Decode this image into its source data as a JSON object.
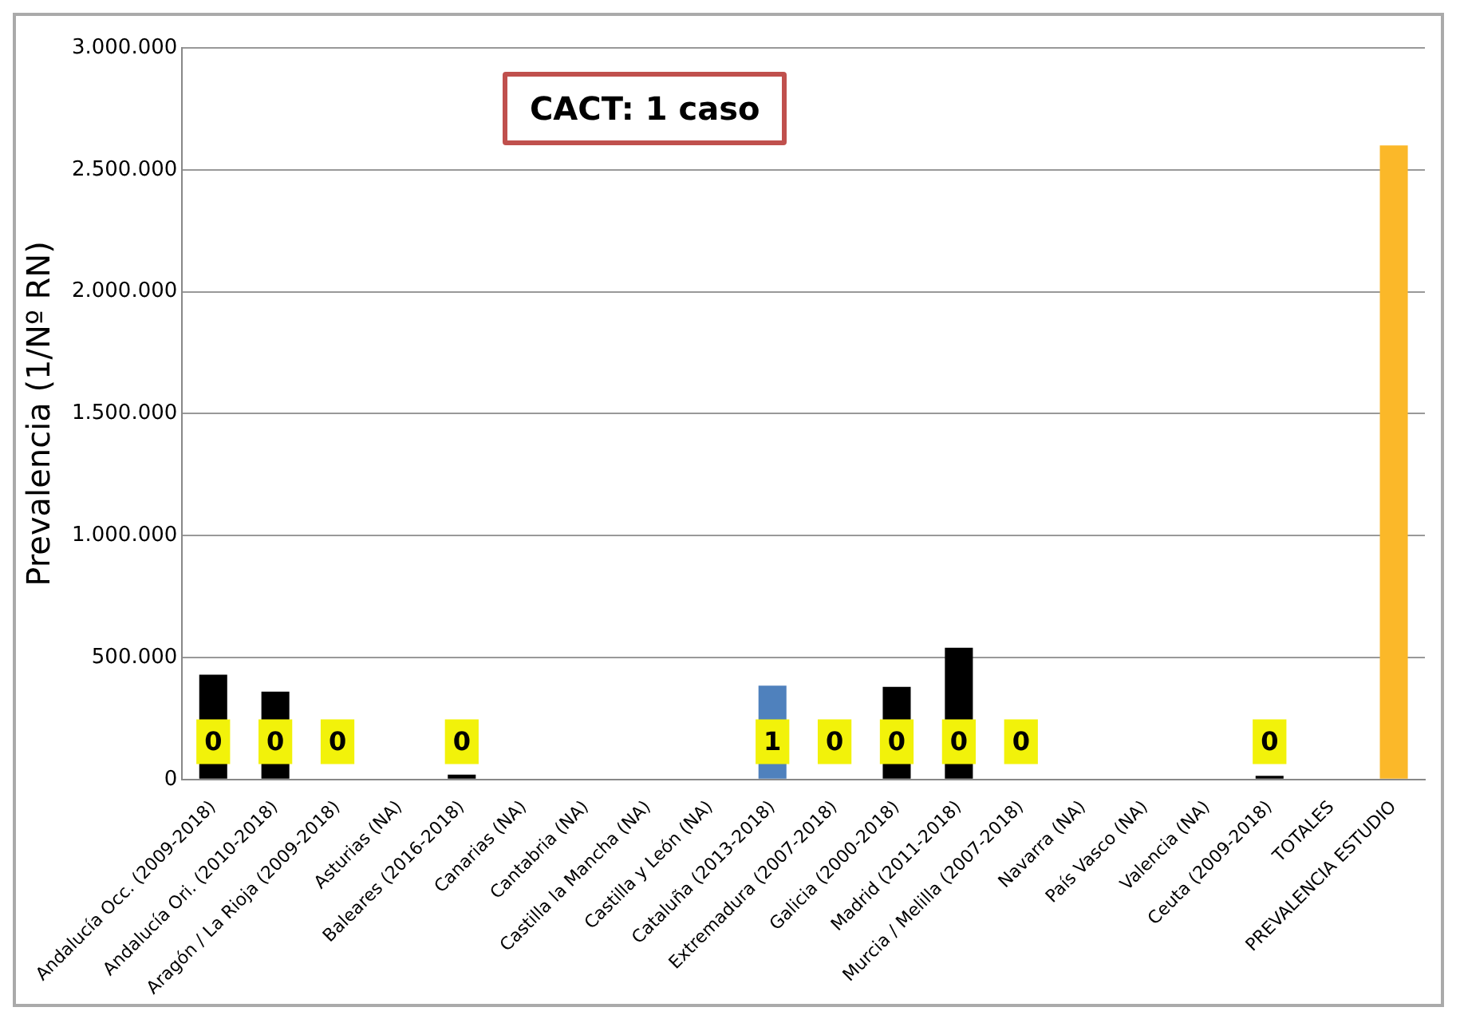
{
  "chart_data": {
    "type": "bar",
    "ylabel": "Prevalencia (1/Nº RN)",
    "categories": [
      "Andalucía Occ. (2009-2018)",
      "Andalucía Ori. (2010-2018)",
      "Aragón / La Rioja (2009-2018)",
      "Asturias (NA)",
      "Baleares (2016-2018)",
      "Canarias (NA)",
      "Cantabria (NA)",
      "Castilla la Mancha (NA)",
      "Castilla y León (NA)",
      "Cataluña (2013-2018)",
      "Extremadura (2007-2018)",
      "Galicia (2000-2018)",
      "Madrid (2011-2018)",
      "Murcia / Melilla (2007-2018)",
      "Navarra (NA)",
      "País Vasco (NA)",
      "Valencia (NA)",
      "Ceuta (2009-2018)",
      "TOTALES",
      "PREVALENCIA ESTUDIO"
    ],
    "values": [
      430000,
      360000,
      null,
      null,
      20000,
      null,
      null,
      null,
      null,
      385000,
      null,
      380000,
      540000,
      null,
      null,
      null,
      null,
      15000,
      null,
      2600000
    ],
    "colors": [
      "#000000",
      "#000000",
      "#000000",
      "#000000",
      "#000000",
      "#000000",
      "#000000",
      "#000000",
      "#000000",
      "#4f81bd",
      "#000000",
      "#000000",
      "#000000",
      "#000000",
      "#000000",
      "#000000",
      "#000000",
      "#000000",
      "#000000",
      "#fbb829"
    ],
    "ylim": [
      0,
      3000000
    ],
    "yticks": [
      0,
      {
        "value": 500000,
        "label": "500.000"
      },
      {
        "value": 1000000,
        "label": "1.000.000"
      },
      {
        "value": 1500000,
        "label": "1.500.000"
      },
      {
        "value": 2000000,
        "label": "2.000.000"
      },
      {
        "value": 2500000,
        "label": "2.500.000"
      },
      {
        "value": 3000000,
        "label": "3.000.000"
      }
    ],
    "grid": "y",
    "legend": false,
    "annotations": [
      "CACT: 1 caso",
      {
        "text": "0",
        "x": "Andalucía Occ. (2009-2018)",
        "y": 155000
      },
      {
        "text": "0",
        "x": "Andalucía Ori. (2010-2018)",
        "y": 155000
      },
      {
        "text": "0",
        "x": "Aragón / La Rioja (2009-2018)",
        "y": 155000
      },
      {
        "text": "0",
        "x": "Baleares (2016-2018)",
        "y": 155000
      },
      {
        "text": "1",
        "x": "Cataluña (2013-2018)",
        "y": 155000
      },
      {
        "text": "0",
        "x": "Extremadura (2007-2018)",
        "y": 155000
      },
      {
        "text": "0",
        "x": "Galicia (2000-2018)",
        "y": 155000
      },
      {
        "text": "0",
        "x": "Madrid (2011-2018)",
        "y": 155000
      },
      {
        "text": "0",
        "x": "Murcia / Melilla (2007-2018)",
        "y": 155000
      },
      {
        "text": "0",
        "x": "Ceuta (2009-2018)",
        "y": 155000
      }
    ]
  }
}
